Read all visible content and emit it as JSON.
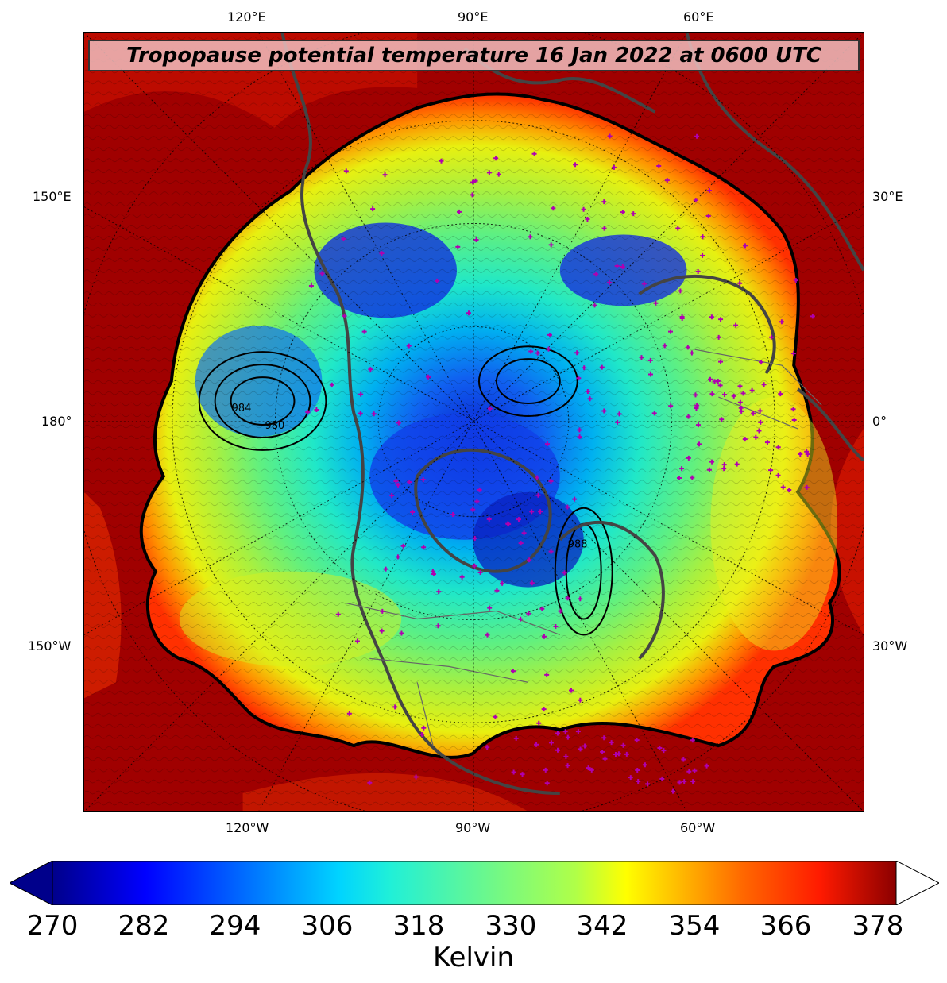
{
  "title": "Tropopause potential temperature 16 Jan 2022 at 0600 UTC",
  "map": {
    "projection": "north-polar-stereographic",
    "top_labels": [
      "120°E",
      "90°E",
      "60°E"
    ],
    "bottom_labels": [
      "120°W",
      "90°W",
      "60°W"
    ],
    "left_labels": [
      "150°E",
      "180°",
      "150°W"
    ],
    "right_labels": [
      "30°E",
      "0°",
      "30°W"
    ],
    "contour_labels": [
      "984",
      "980",
      "988"
    ],
    "station_marker_color": "#b000b0",
    "coastline_color": "#404040",
    "outer_field_color": "#8b0000"
  },
  "colorbar": {
    "label": "Kelvin",
    "ticks": [
      "270",
      "282",
      "294",
      "306",
      "318",
      "330",
      "342",
      "354",
      "366",
      "378"
    ],
    "min": 270,
    "max": 378,
    "colormap": "jet",
    "extend": "both",
    "max_extend_color": "#ffffff",
    "min_extend_color": "#00008b"
  }
}
